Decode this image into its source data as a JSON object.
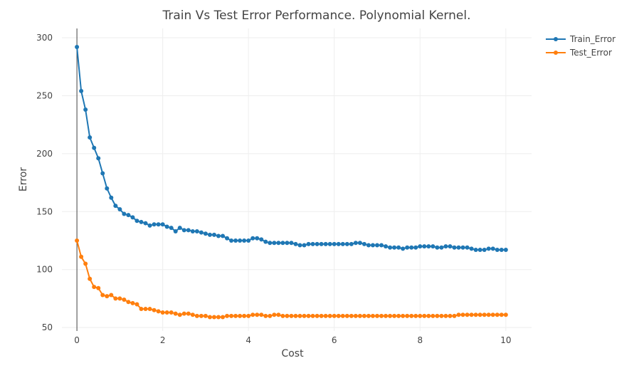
{
  "chart_data": {
    "type": "line",
    "title": "Train Vs Test Error Performance. Polynomial Kernel.",
    "xlabel": "Cost",
    "ylabel": "Error",
    "xlim": [
      -0.35,
      10.6
    ],
    "ylim": [
      47,
      308
    ],
    "xticks": [
      0,
      2,
      4,
      6,
      8,
      10
    ],
    "yticks": [
      50,
      100,
      150,
      200,
      250,
      300
    ],
    "grid": true,
    "legend_position": "top-right",
    "x": [
      0.0,
      0.1,
      0.2,
      0.3,
      0.4,
      0.5,
      0.6,
      0.7,
      0.8,
      0.9,
      1.0,
      1.1,
      1.2,
      1.3,
      1.4,
      1.5,
      1.6,
      1.7,
      1.8,
      1.9,
      2.0,
      2.1,
      2.2,
      2.3,
      2.4,
      2.5,
      2.6,
      2.7,
      2.8,
      2.9,
      3.0,
      3.1,
      3.2,
      3.3,
      3.4,
      3.5,
      3.6,
      3.7,
      3.8,
      3.9,
      4.0,
      4.1,
      4.2,
      4.3,
      4.4,
      4.5,
      4.6,
      4.7,
      4.8,
      4.9,
      5.0,
      5.1,
      5.2,
      5.3,
      5.4,
      5.5,
      5.6,
      5.7,
      5.8,
      5.9,
      6.0,
      6.1,
      6.2,
      6.3,
      6.4,
      6.5,
      6.6,
      6.7,
      6.8,
      6.9,
      7.0,
      7.1,
      7.2,
      7.3,
      7.4,
      7.5,
      7.6,
      7.7,
      7.8,
      7.9,
      8.0,
      8.1,
      8.2,
      8.3,
      8.4,
      8.5,
      8.6,
      8.7,
      8.8,
      8.9,
      9.0,
      9.1,
      9.2,
      9.3,
      9.4,
      9.5,
      9.6,
      9.7,
      9.8,
      9.9,
      10.0
    ],
    "series": [
      {
        "name": "Train_Error",
        "color": "#1f77b4",
        "values": [
          292,
          254,
          238,
          214,
          205,
          196,
          183,
          170,
          162,
          155,
          152,
          148,
          147,
          145,
          142,
          141,
          140,
          138,
          139,
          139,
          139,
          137,
          136,
          133,
          136,
          134,
          134,
          133,
          133,
          132,
          131,
          130,
          130,
          129,
          129,
          127,
          125,
          125,
          125,
          125,
          125,
          127,
          127,
          126,
          124,
          123,
          123,
          123,
          123,
          123,
          123,
          122,
          121,
          121,
          122,
          122,
          122,
          122,
          122,
          122,
          122,
          122,
          122,
          122,
          122,
          123,
          123,
          122,
          121,
          121,
          121,
          121,
          120,
          119,
          119,
          119,
          118,
          119,
          119,
          119,
          120,
          120,
          120,
          120,
          119,
          119,
          120,
          120,
          119,
          119,
          119,
          119,
          118,
          117,
          117,
          117,
          118,
          118,
          117,
          117,
          117
        ]
      },
      {
        "name": "Test_Error",
        "color": "#ff7f0e",
        "values": [
          125,
          111,
          105,
          92,
          85,
          84,
          78,
          77,
          78,
          75,
          75,
          74,
          72,
          71,
          70,
          66,
          66,
          66,
          65,
          64,
          63,
          63,
          63,
          62,
          61,
          62,
          62,
          61,
          60,
          60,
          60,
          59,
          59,
          59,
          59,
          60,
          60,
          60,
          60,
          60,
          60,
          61,
          61,
          61,
          60,
          60,
          61,
          61,
          60,
          60,
          60,
          60,
          60,
          60,
          60,
          60,
          60,
          60,
          60,
          60,
          60,
          60,
          60,
          60,
          60,
          60,
          60,
          60,
          60,
          60,
          60,
          60,
          60,
          60,
          60,
          60,
          60,
          60,
          60,
          60,
          60,
          60,
          60,
          60,
          60,
          60,
          60,
          60,
          60,
          61,
          61,
          61,
          61,
          61,
          61,
          61,
          61,
          61,
          61,
          61,
          61
        ]
      }
    ]
  }
}
